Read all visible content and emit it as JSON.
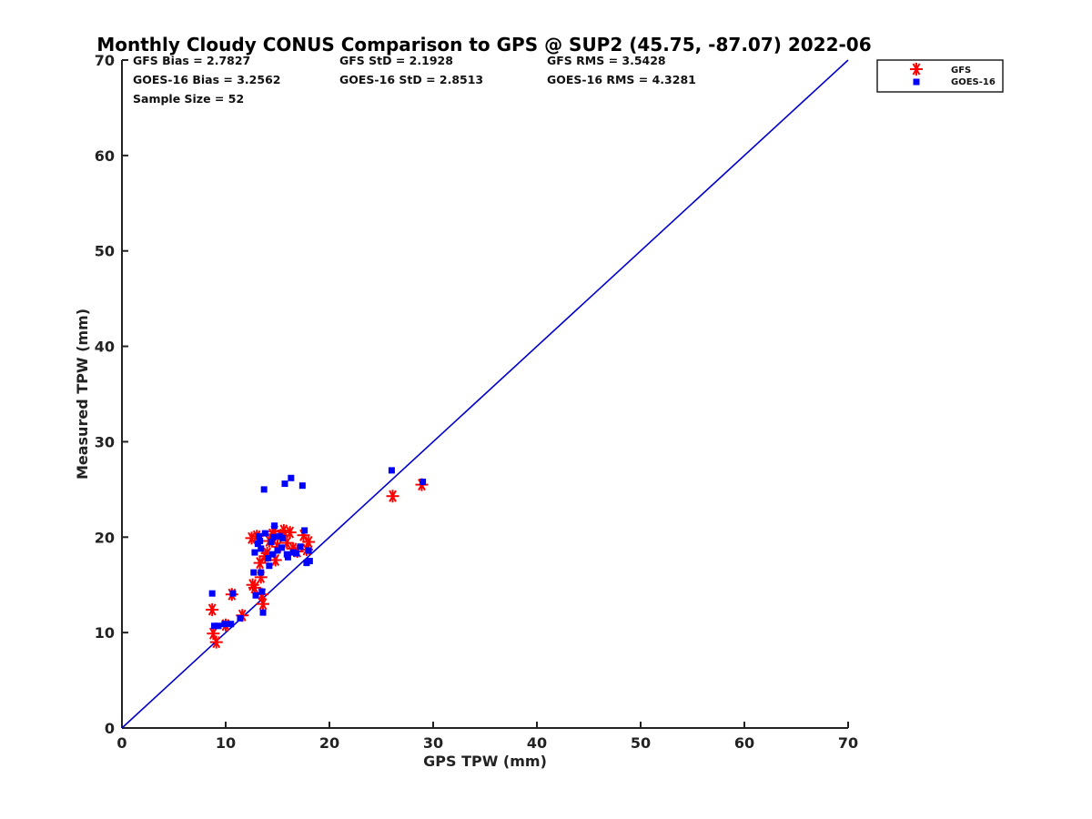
{
  "chart_data": {
    "type": "scatter",
    "title": "Monthly Cloudy CONUS Comparison to GPS @ SUP2 (45.75, -87.07) 2022-06",
    "xlabel": "GPS TPW (mm)",
    "ylabel": "Measured TPW (mm)",
    "xlim": [
      0,
      70
    ],
    "ylim": [
      0,
      70
    ],
    "xticks": [
      "0",
      "10",
      "20",
      "30",
      "40",
      "50",
      "60",
      "70"
    ],
    "yticks": [
      "0",
      "10",
      "20",
      "30",
      "40",
      "50",
      "60",
      "70"
    ],
    "grid": false,
    "legend_position": "top-right",
    "stats": {
      "gfs_bias": "GFS Bias = 2.7827",
      "gfs_std": "GFS StD = 2.1928",
      "gfs_rms": "GFS RMS = 3.5428",
      "goes_bias": "GOES-16 Bias = 3.2562",
      "goes_std": "GOES-16 StD = 2.8513",
      "goes_rms": "GOES-16 RMS = 4.3281",
      "sample_size": "Sample Size = 52"
    },
    "reference_line": {
      "x": [
        0,
        70
      ],
      "y": [
        0,
        70
      ],
      "color": "#0000cc"
    },
    "series": [
      {
        "name": "GFS",
        "marker": "asterisk",
        "color": "#ff0000",
        "points": [
          [
            8.7,
            12.4
          ],
          [
            8.8,
            9.9
          ],
          [
            9.1,
            9.0
          ],
          [
            10.0,
            10.8
          ],
          [
            10.6,
            14.0
          ],
          [
            11.6,
            11.8
          ],
          [
            12.5,
            19.9
          ],
          [
            12.6,
            15.0
          ],
          [
            12.8,
            14.7
          ],
          [
            13.0,
            20.1
          ],
          [
            13.3,
            17.3
          ],
          [
            13.4,
            15.8
          ],
          [
            13.5,
            14.0
          ],
          [
            13.6,
            13.0
          ],
          [
            13.8,
            18.0
          ],
          [
            14.0,
            18.3
          ],
          [
            14.2,
            19.6
          ],
          [
            14.5,
            20.3
          ],
          [
            14.7,
            20.6
          ],
          [
            14.8,
            17.6
          ],
          [
            15.0,
            19.0
          ],
          [
            15.3,
            20.2
          ],
          [
            15.6,
            20.7
          ],
          [
            15.9,
            19.4
          ],
          [
            16.2,
            20.5
          ],
          [
            16.5,
            18.8
          ],
          [
            16.9,
            18.5
          ],
          [
            17.5,
            20.2
          ],
          [
            17.8,
            18.7
          ],
          [
            18.0,
            19.5
          ],
          [
            26.1,
            24.3
          ],
          [
            28.9,
            25.5
          ]
        ]
      },
      {
        "name": "GOES-16",
        "marker": "square",
        "color": "#0000ff",
        "points": [
          [
            8.7,
            14.1
          ],
          [
            8.9,
            10.7
          ],
          [
            9.3,
            10.7
          ],
          [
            9.9,
            10.9
          ],
          [
            10.5,
            10.9
          ],
          [
            10.7,
            14.1
          ],
          [
            11.4,
            11.5
          ],
          [
            12.7,
            16.3
          ],
          [
            12.8,
            18.4
          ],
          [
            12.9,
            13.9
          ],
          [
            13.1,
            19.3
          ],
          [
            13.2,
            20.1
          ],
          [
            13.3,
            19.6
          ],
          [
            13.4,
            18.8
          ],
          [
            13.4,
            16.3
          ],
          [
            13.5,
            14.3
          ],
          [
            13.6,
            12.1
          ],
          [
            13.7,
            25.0
          ],
          [
            13.8,
            20.4
          ],
          [
            14.1,
            17.8
          ],
          [
            14.2,
            17.0
          ],
          [
            14.4,
            19.5
          ],
          [
            14.5,
            18.2
          ],
          [
            14.6,
            20.0
          ],
          [
            14.7,
            21.2
          ],
          [
            15.0,
            18.6
          ],
          [
            15.2,
            20.1
          ],
          [
            15.4,
            18.9
          ],
          [
            15.5,
            19.9
          ],
          [
            15.7,
            25.6
          ],
          [
            15.9,
            18.2
          ],
          [
            16.0,
            17.9
          ],
          [
            16.3,
            26.2
          ],
          [
            16.5,
            18.4
          ],
          [
            16.8,
            18.3
          ],
          [
            17.2,
            19.0
          ],
          [
            17.4,
            25.4
          ],
          [
            17.6,
            20.7
          ],
          [
            17.8,
            17.3
          ],
          [
            18.1,
            17.5
          ],
          [
            18.0,
            18.6
          ],
          [
            26.0,
            27.0
          ],
          [
            29.0,
            25.8
          ]
        ]
      }
    ]
  }
}
